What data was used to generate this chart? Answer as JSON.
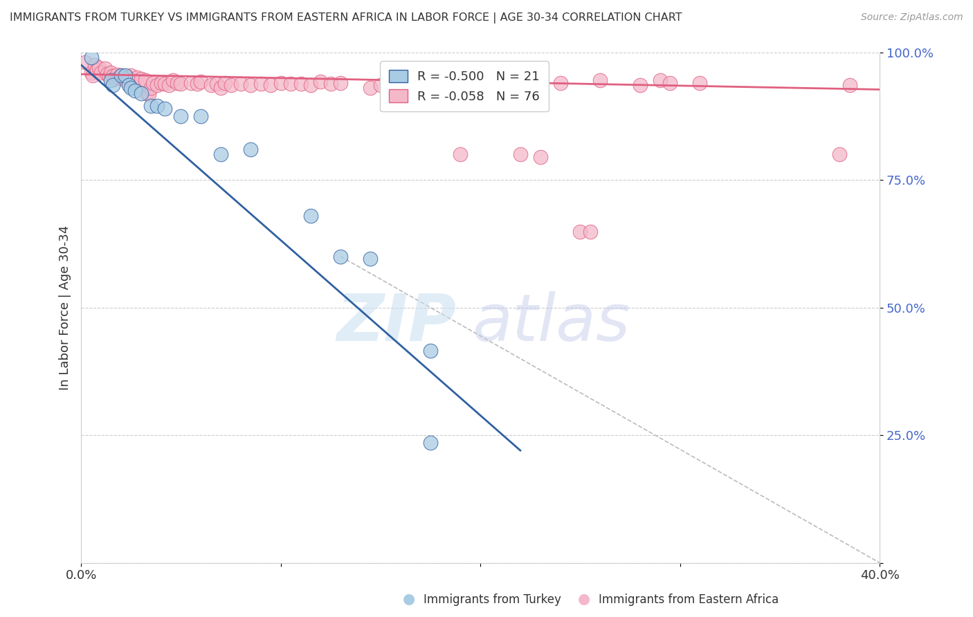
{
  "title": "IMMIGRANTS FROM TURKEY VS IMMIGRANTS FROM EASTERN AFRICA IN LABOR FORCE | AGE 30-34 CORRELATION CHART",
  "source": "Source: ZipAtlas.com",
  "ylabel": "In Labor Force | Age 30-34",
  "legend_label_blue": "Immigrants from Turkey",
  "legend_label_pink": "Immigrants from Eastern Africa",
  "R_blue": -0.5,
  "N_blue": 21,
  "R_pink": -0.058,
  "N_pink": 76,
  "xlim": [
    0.0,
    0.4
  ],
  "ylim": [
    0.0,
    1.0
  ],
  "xticks": [
    0.0,
    0.1,
    0.2,
    0.3,
    0.4
  ],
  "yticks": [
    0.0,
    0.25,
    0.5,
    0.75,
    1.0
  ],
  "color_blue": "#a8cce4",
  "color_pink": "#f4b8ca",
  "color_blue_line": "#3060a0",
  "color_pink_line": "#e06080",
  "color_dashed_line": "#bbbbbb",
  "watermark_zip": "ZIP",
  "watermark_atlas": "atlas",
  "blue_scatter": [
    [
      0.005,
      0.99
    ],
    [
      0.015,
      0.945
    ],
    [
      0.016,
      0.935
    ],
    [
      0.02,
      0.955
    ],
    [
      0.022,
      0.955
    ],
    [
      0.024,
      0.935
    ],
    [
      0.025,
      0.93
    ],
    [
      0.027,
      0.925
    ],
    [
      0.03,
      0.92
    ],
    [
      0.035,
      0.895
    ],
    [
      0.038,
      0.895
    ],
    [
      0.042,
      0.89
    ],
    [
      0.05,
      0.875
    ],
    [
      0.06,
      0.875
    ],
    [
      0.07,
      0.8
    ],
    [
      0.085,
      0.81
    ],
    [
      0.115,
      0.68
    ],
    [
      0.13,
      0.6
    ],
    [
      0.145,
      0.595
    ],
    [
      0.175,
      0.415
    ],
    [
      0.175,
      0.235
    ]
  ],
  "pink_scatter": [
    [
      0.002,
      0.98
    ],
    [
      0.005,
      0.96
    ],
    [
      0.006,
      0.955
    ],
    [
      0.007,
      0.975
    ],
    [
      0.008,
      0.965
    ],
    [
      0.009,
      0.97
    ],
    [
      0.01,
      0.96
    ],
    [
      0.012,
      0.968
    ],
    [
      0.013,
      0.958
    ],
    [
      0.014,
      0.952
    ],
    [
      0.015,
      0.96
    ],
    [
      0.016,
      0.953
    ],
    [
      0.017,
      0.948
    ],
    [
      0.018,
      0.956
    ],
    [
      0.019,
      0.95
    ],
    [
      0.02,
      0.955
    ],
    [
      0.021,
      0.95
    ],
    [
      0.022,
      0.945
    ],
    [
      0.023,
      0.952
    ],
    [
      0.024,
      0.948
    ],
    [
      0.025,
      0.955
    ],
    [
      0.026,
      0.945
    ],
    [
      0.028,
      0.95
    ],
    [
      0.03,
      0.948
    ],
    [
      0.032,
      0.945
    ],
    [
      0.033,
      0.92
    ],
    [
      0.034,
      0.918
    ],
    [
      0.035,
      0.93
    ],
    [
      0.036,
      0.94
    ],
    [
      0.038,
      0.935
    ],
    [
      0.04,
      0.94
    ],
    [
      0.042,
      0.938
    ],
    [
      0.044,
      0.935
    ],
    [
      0.046,
      0.945
    ],
    [
      0.048,
      0.94
    ],
    [
      0.05,
      0.938
    ],
    [
      0.055,
      0.94
    ],
    [
      0.058,
      0.938
    ],
    [
      0.06,
      0.942
    ],
    [
      0.065,
      0.935
    ],
    [
      0.068,
      0.938
    ],
    [
      0.07,
      0.93
    ],
    [
      0.072,
      0.94
    ],
    [
      0.075,
      0.935
    ],
    [
      0.08,
      0.938
    ],
    [
      0.085,
      0.935
    ],
    [
      0.09,
      0.938
    ],
    [
      0.095,
      0.935
    ],
    [
      0.1,
      0.94
    ],
    [
      0.105,
      0.938
    ],
    [
      0.11,
      0.938
    ],
    [
      0.115,
      0.935
    ],
    [
      0.12,
      0.942
    ],
    [
      0.125,
      0.938
    ],
    [
      0.13,
      0.94
    ],
    [
      0.145,
      0.93
    ],
    [
      0.15,
      0.935
    ],
    [
      0.155,
      0.935
    ],
    [
      0.16,
      0.932
    ],
    [
      0.17,
      0.935
    ],
    [
      0.18,
      0.935
    ],
    [
      0.19,
      0.8
    ],
    [
      0.2,
      0.94
    ],
    [
      0.21,
      0.94
    ],
    [
      0.22,
      0.8
    ],
    [
      0.23,
      0.795
    ],
    [
      0.24,
      0.94
    ],
    [
      0.25,
      0.648
    ],
    [
      0.255,
      0.648
    ],
    [
      0.26,
      0.945
    ],
    [
      0.28,
      0.935
    ],
    [
      0.29,
      0.945
    ],
    [
      0.295,
      0.94
    ],
    [
      0.31,
      0.94
    ],
    [
      0.38,
      0.8
    ],
    [
      0.385,
      0.935
    ]
  ],
  "blue_line_x": [
    0.0,
    0.22
  ],
  "blue_line_y": [
    0.975,
    0.22
  ],
  "pink_line_x": [
    0.0,
    0.4
  ],
  "pink_line_y": [
    0.957,
    0.927
  ],
  "diag_line_x": [
    0.13,
    0.4
  ],
  "diag_line_y": [
    0.6,
    0.0
  ]
}
